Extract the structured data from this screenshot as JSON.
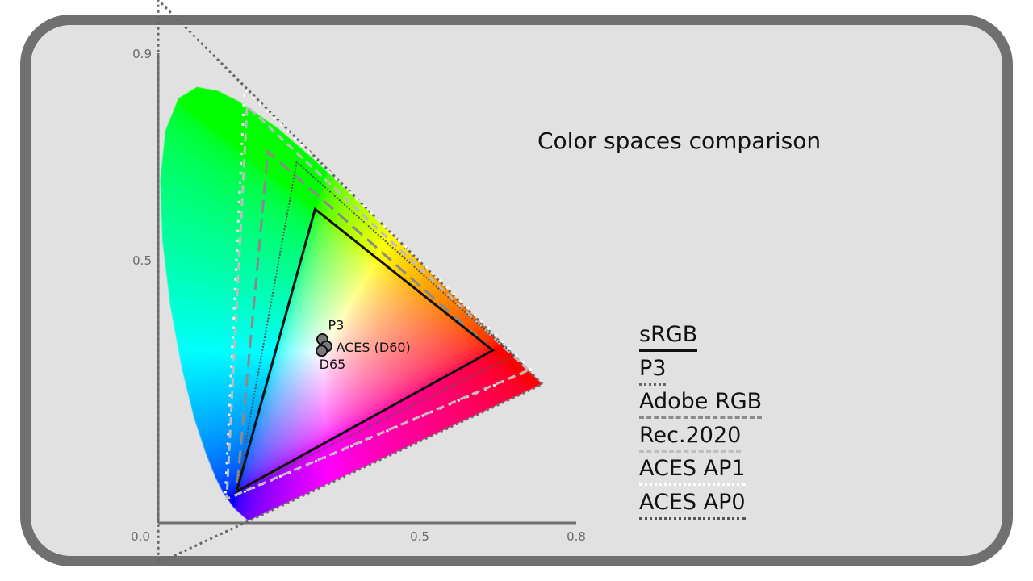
{
  "chart_data": {
    "type": "chromaticity-diagram",
    "title": "Color spaces comparison",
    "xlim": [
      0.0,
      0.8
    ],
    "ylim": [
      0.0,
      0.9
    ],
    "x_ticks": [
      "0.0",
      "0.5",
      "0.8"
    ],
    "x_tick_values": [
      0.0,
      0.5,
      0.8
    ],
    "y_ticks": [
      "0.5",
      "0.9"
    ],
    "y_tick_values": [
      0.5,
      0.9
    ],
    "grid": false,
    "legend_placement": "right",
    "gamuts": [
      {
        "name": "ACES AP0",
        "style": "dotted",
        "color": "#666666",
        "points": [
          [
            0.7347,
            0.2653
          ],
          [
            0.0,
            1.0
          ],
          [
            0.0001,
            -0.077
          ]
        ]
      },
      {
        "name": "ACES AP1",
        "style": "dotted",
        "color": "#ffffff",
        "points": [
          [
            0.713,
            0.293
          ],
          [
            0.165,
            0.83
          ],
          [
            0.128,
            0.044
          ]
        ]
      },
      {
        "name": "Rec.2020",
        "style": "dashed",
        "color": "#bdbdbd",
        "points": [
          [
            0.708,
            0.292
          ],
          [
            0.17,
            0.797
          ],
          [
            0.131,
            0.046
          ]
        ]
      },
      {
        "name": "Adobe RGB",
        "style": "dashed",
        "color": "#8a8a8a",
        "points": [
          [
            0.64,
            0.33
          ],
          [
            0.21,
            0.71
          ],
          [
            0.15,
            0.06
          ]
        ]
      },
      {
        "name": "P3",
        "style": "dotted",
        "color": "#555555",
        "points": [
          [
            0.68,
            0.32
          ],
          [
            0.265,
            0.69
          ],
          [
            0.15,
            0.06
          ]
        ]
      },
      {
        "name": "sRGB",
        "style": "solid",
        "color": "#111111",
        "points": [
          [
            0.64,
            0.33
          ],
          [
            0.3,
            0.6
          ],
          [
            0.15,
            0.06
          ]
        ]
      }
    ],
    "white_points": [
      {
        "label": "P3",
        "x": 0.314,
        "y": 0.351
      },
      {
        "label": "ACES (D60)",
        "x": 0.32168,
        "y": 0.33767
      },
      {
        "label": "D65",
        "x": 0.3127,
        "y": 0.329
      }
    ],
    "legend": [
      "sRGB",
      "P3",
      "Adobe RGB",
      "Rec.2020",
      "ACES AP1",
      "ACES AP0"
    ]
  }
}
